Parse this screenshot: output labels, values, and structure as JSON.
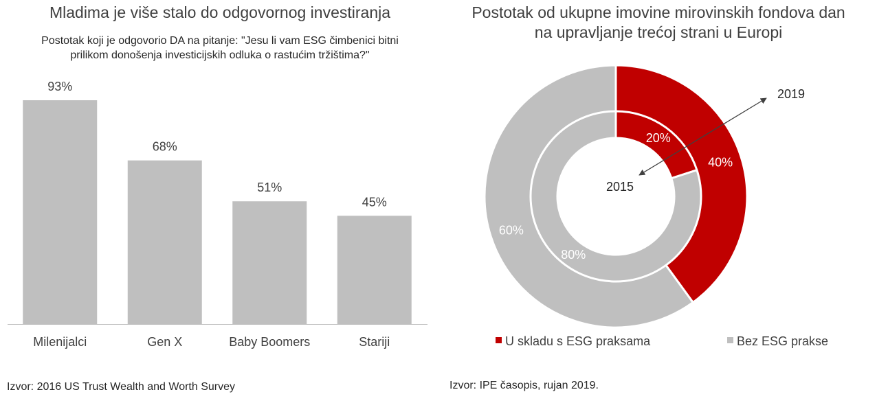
{
  "left": {
    "title": "Mladima je više stalo do odgovornog investiranja",
    "subtitle": "Postotak koji je odgovorio DA na pitanje: \"Jesu li vam ESG čimbenici bitni\nprilikom donošenja investicijskih odluka o rastućim tržištima?\"",
    "source": "Izvor: 2016 US Trust Wealth and Worth Survey"
  },
  "right": {
    "title": "Postotak od ukupne imovine mirovinskih fondova dan\nna upravljanje trećoj strani u Europi",
    "source": "Izvor: IPE časopis, rujan 2019."
  },
  "chart_data": [
    {
      "type": "bar",
      "categories": [
        "Milenijalci",
        "Gen X",
        "Baby Boomers",
        "Stariji"
      ],
      "values": [
        93,
        68,
        51,
        45
      ],
      "labels": [
        "93%",
        "68%",
        "51%",
        "45%"
      ],
      "title": "Mladima je više stalo do odgovornog investiranja",
      "ylim": [
        0,
        100
      ],
      "grid": false,
      "colors": {
        "bar": "#bfbfbf"
      }
    },
    {
      "type": "pie",
      "subtype": "double-doughnut",
      "title": "Postotak od ukupne imovine mirovinskih fondova dan na upravljanje trećoj strani u Europi",
      "categories": [
        "U skladu s ESG praksama",
        "Bez ESG prakse"
      ],
      "colors": [
        "#c00000",
        "#bfbfbf"
      ],
      "rings": [
        {
          "name": "2015",
          "ring": "inner",
          "values": [
            20,
            80
          ],
          "labels": [
            "20%",
            "80%"
          ]
        },
        {
          "name": "2019",
          "ring": "outer",
          "values": [
            40,
            60
          ],
          "labels": [
            "40%",
            "60%"
          ]
        }
      ],
      "annotations": {
        "center": "2015",
        "arrow_target": "2019"
      },
      "legend": "bottom"
    }
  ]
}
